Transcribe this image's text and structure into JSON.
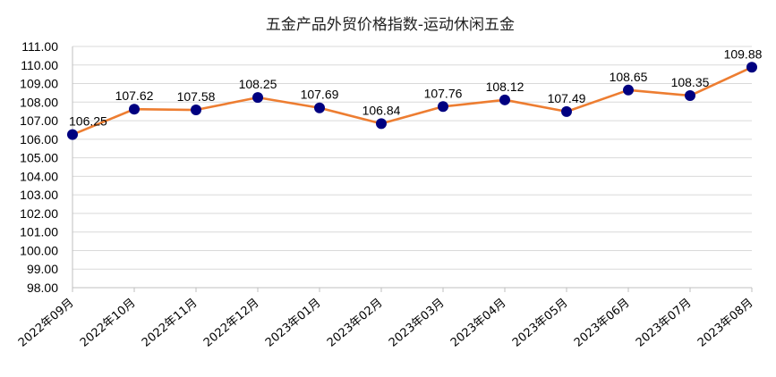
{
  "chart_data": {
    "type": "line",
    "title": "五金产品外贸价格指数-运动休闲五金",
    "categories": [
      "2022年09月",
      "2022年10月",
      "2022年11月",
      "2022年12月",
      "2023年01月",
      "2023年02月",
      "2023年03月",
      "2023年04月",
      "2023年05月",
      "2023年06月",
      "2023年07月",
      "2023年08月"
    ],
    "series": [
      {
        "values": [
          106.25,
          107.62,
          107.58,
          108.25,
          107.69,
          106.84,
          107.76,
          108.12,
          107.49,
          108.65,
          108.35,
          109.88
        ],
        "labels": [
          "106.25",
          "107.62",
          "107.58",
          "108.25",
          "107.69",
          "106.84",
          "107.76",
          "108.12",
          "107.49",
          "108.65",
          "108.35",
          "109.88"
        ]
      }
    ],
    "yticks": [
      "98.00",
      "99.00",
      "100.00",
      "101.00",
      "102.00",
      "103.00",
      "104.00",
      "105.00",
      "106.00",
      "107.00",
      "108.00",
      "109.00",
      "110.00",
      "111.00"
    ],
    "ylim": [
      98,
      111
    ],
    "grid": true,
    "legend": "none",
    "line_color": "#ED7D31",
    "marker_color": "#000080"
  }
}
